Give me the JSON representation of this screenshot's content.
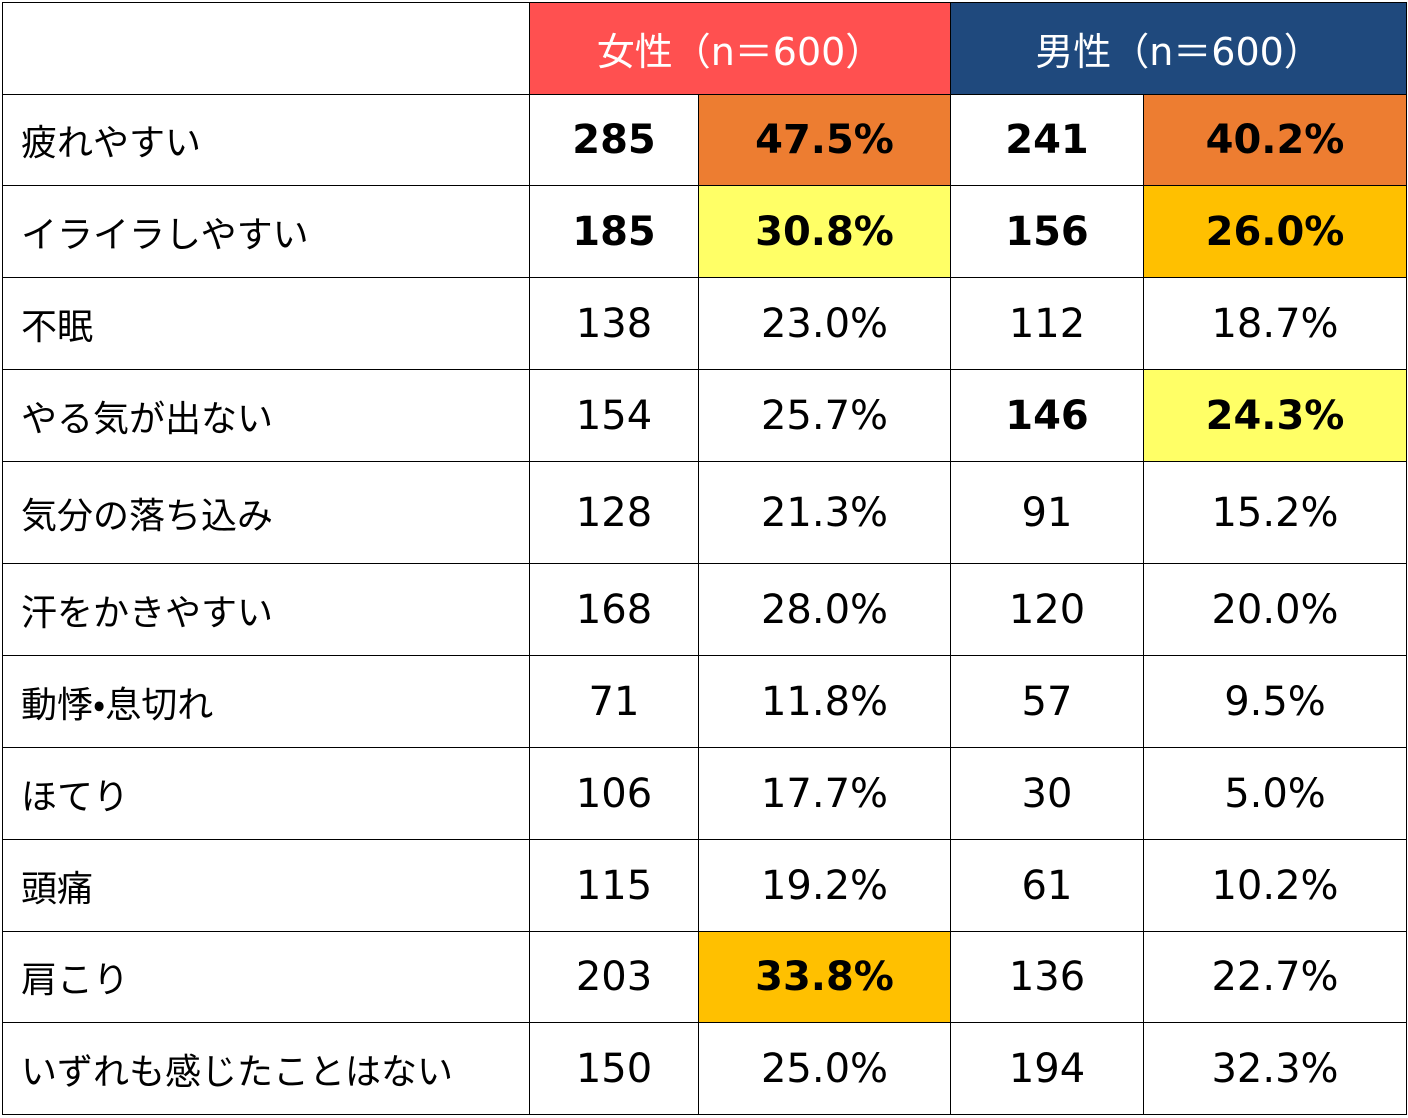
{
  "table": {
    "header": {
      "female": {
        "label": "女性（n＝600）",
        "color": "#ff5050"
      },
      "male": {
        "label": "男性（n＝600）",
        "color": "#1f497d"
      }
    },
    "rows": [
      {
        "label": "疲れやすい",
        "cells": [
          "285",
          "47.5%",
          "241",
          "40.2%"
        ],
        "bold": [
          true,
          true,
          true,
          true
        ],
        "fills": [
          null,
          "#ed7d31",
          null,
          "#ed7d31"
        ]
      },
      {
        "label": "イライラしやすい",
        "cells": [
          "185",
          "30.8%",
          "156",
          "26.0%"
        ],
        "bold": [
          true,
          true,
          true,
          true
        ],
        "fills": [
          null,
          "#ffff66",
          null,
          "#ffc000"
        ]
      },
      {
        "label": "不眠",
        "cells": [
          "138",
          "23.0%",
          "112",
          "18.7%"
        ],
        "bold": [
          false,
          false,
          false,
          false
        ],
        "fills": [
          null,
          null,
          null,
          null
        ]
      },
      {
        "label": "やる気が出ない",
        "cells": [
          "154",
          "25.7%",
          "146",
          "24.3%"
        ],
        "bold": [
          false,
          false,
          true,
          true
        ],
        "fills": [
          null,
          null,
          null,
          "#ffff66"
        ]
      },
      {
        "label": "気分の落ち込み",
        "cells": [
          "128",
          "21.3%",
          "91",
          "15.2%"
        ],
        "bold": [
          false,
          false,
          false,
          false
        ],
        "fills": [
          null,
          null,
          null,
          null
        ]
      },
      {
        "label": "汗をかきやすい",
        "cells": [
          "168",
          "28.0%",
          "120",
          "20.0%"
        ],
        "bold": [
          false,
          false,
          false,
          false
        ],
        "fills": [
          null,
          null,
          null,
          null
        ]
      },
      {
        "label": "動悸・息切れ",
        "cells": [
          "71",
          "11.8%",
          "57",
          "9.5%"
        ],
        "bold": [
          false,
          false,
          false,
          false
        ],
        "fills": [
          null,
          null,
          null,
          null
        ]
      },
      {
        "label": "ほてり",
        "cells": [
          "106",
          "17.7%",
          "30",
          "5.0%"
        ],
        "bold": [
          false,
          false,
          false,
          false
        ],
        "fills": [
          null,
          null,
          null,
          null
        ]
      },
      {
        "label": "頭痛",
        "cells": [
          "115",
          "19.2%",
          "61",
          "10.2%"
        ],
        "bold": [
          false,
          false,
          false,
          false
        ],
        "fills": [
          null,
          null,
          null,
          null
        ]
      },
      {
        "label": "肩こり",
        "cells": [
          "203",
          "33.8%",
          "136",
          "22.7%"
        ],
        "bold": [
          false,
          true,
          false,
          false
        ],
        "fills": [
          null,
          "#ffc000",
          null,
          null
        ]
      },
      {
        "label": "いずれも感じたことはない",
        "cells": [
          "150",
          "25.0%",
          "194",
          "32.3%"
        ],
        "bold": [
          false,
          false,
          false,
          false
        ],
        "fills": [
          null,
          null,
          null,
          null
        ]
      }
    ]
  }
}
